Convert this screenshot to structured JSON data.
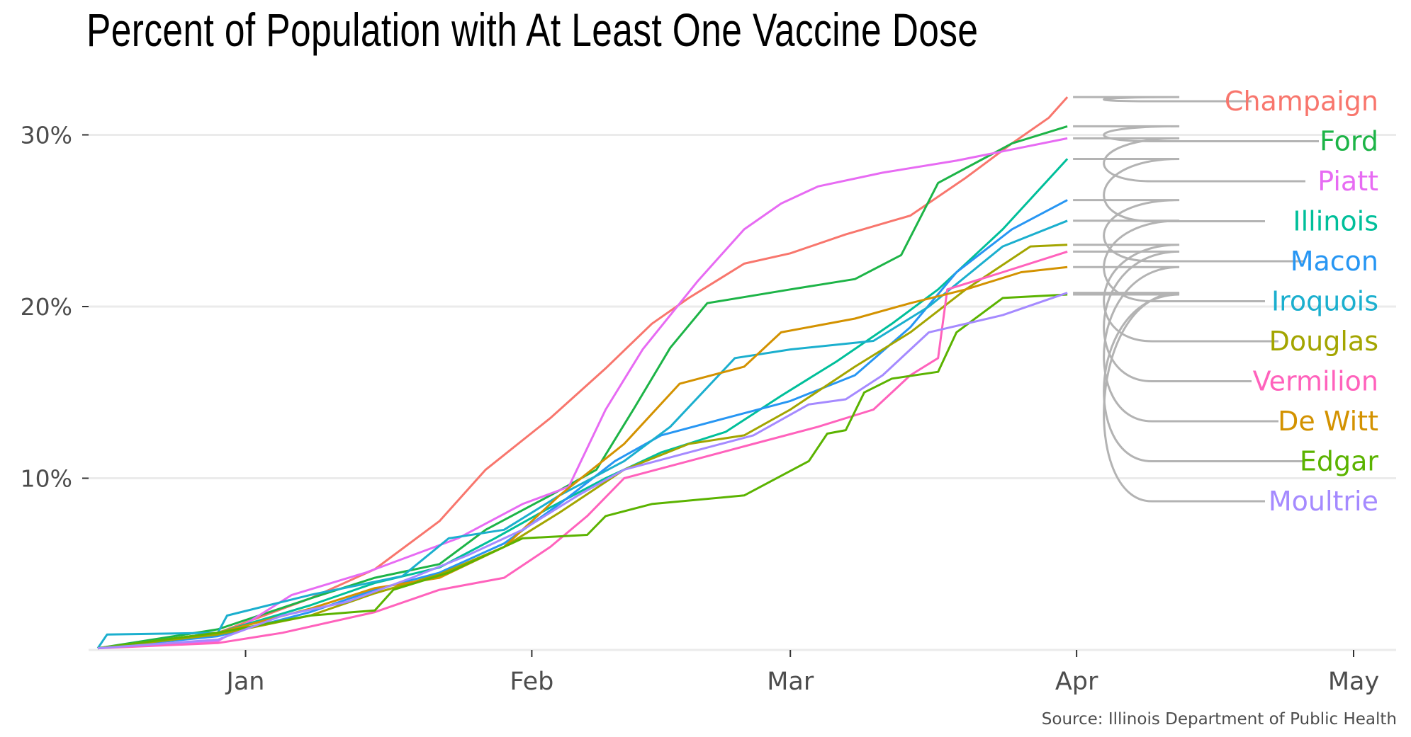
{
  "chart_data": {
    "type": "line",
    "title": "Percent of Population with At Least One Vaccine Dose",
    "caption": "Source: Illinois Department of Public Health",
    "x_ticks": [
      "Jan",
      "Feb",
      "Mar",
      "Apr",
      "May"
    ],
    "x_tick_dates": [
      "2021-01-01",
      "2021-02-01",
      "2021-03-01",
      "2021-04-01",
      "2021-05-01"
    ],
    "x_range": [
      "2020-12-15",
      "2021-05-01"
    ],
    "y_ticks": [
      "10%",
      "20%",
      "30%"
    ],
    "y_tick_values": [
      10,
      20,
      30
    ],
    "ylim": [
      0,
      32
    ],
    "grid": "horizontal",
    "legend": "direct labels at right",
    "series": [
      {
        "name": "Champaign",
        "color": "#F8766D",
        "x": [
          "2020-12-16",
          "2020-12-29",
          "2021-01-08",
          "2021-01-15",
          "2021-01-22",
          "2021-01-27",
          "2021-02-03",
          "2021-02-09",
          "2021-02-14",
          "2021-02-18",
          "2021-02-24",
          "2021-03-01",
          "2021-03-07",
          "2021-03-14",
          "2021-03-20",
          "2021-03-25",
          "2021-03-29",
          "2021-03-31"
        ],
        "values": [
          0.1,
          1.0,
          3.0,
          4.7,
          7.5,
          10.5,
          13.5,
          16.4,
          19.0,
          20.5,
          22.5,
          23.1,
          24.2,
          25.3,
          27.5,
          29.5,
          31.0,
          32.2
        ]
      },
      {
        "name": "Ford",
        "color": "#1DB447",
        "x": [
          "2020-12-16",
          "2020-12-29",
          "2021-01-08",
          "2021-01-15",
          "2021-01-22",
          "2021-01-27",
          "2021-02-03",
          "2021-02-08",
          "2021-02-12",
          "2021-02-16",
          "2021-02-20",
          "2021-03-01",
          "2021-03-08",
          "2021-03-13",
          "2021-03-17",
          "2021-03-25",
          "2021-03-31"
        ],
        "values": [
          0.1,
          1.2,
          3.0,
          4.2,
          5.0,
          7.0,
          9.0,
          10.5,
          14.0,
          17.6,
          20.2,
          21.0,
          21.6,
          23.0,
          27.2,
          29.5,
          30.5
        ]
      },
      {
        "name": "Piatt",
        "color": "#E76BF3",
        "x": [
          "2020-12-16",
          "2020-12-29",
          "2021-01-06",
          "2021-01-14",
          "2021-01-24",
          "2021-01-31",
          "2021-02-05",
          "2021-02-09",
          "2021-02-13",
          "2021-02-19",
          "2021-02-24",
          "2021-02-28",
          "2021-03-04",
          "2021-03-11",
          "2021-03-19",
          "2021-03-31"
        ],
        "values": [
          0.1,
          0.5,
          3.2,
          4.5,
          6.5,
          8.5,
          9.5,
          14.0,
          17.5,
          21.5,
          24.5,
          26.0,
          27.0,
          27.8,
          28.5,
          29.8
        ]
      },
      {
        "name": "Illinois",
        "color": "#00BF9A",
        "x": [
          "2020-12-16",
          "2020-12-29",
          "2021-01-08",
          "2021-01-15",
          "2021-01-22",
          "2021-01-28",
          "2021-02-03",
          "2021-02-09",
          "2021-02-15",
          "2021-02-22",
          "2021-02-28",
          "2021-03-06",
          "2021-03-12",
          "2021-03-17",
          "2021-03-24",
          "2021-03-31"
        ],
        "values": [
          0.1,
          1.0,
          2.6,
          3.9,
          4.8,
          6.5,
          8.3,
          10.0,
          11.5,
          12.7,
          14.8,
          16.8,
          19.0,
          21.0,
          24.5,
          28.6
        ]
      },
      {
        "name": "Macon",
        "color": "#2796F3",
        "x": [
          "2020-12-16",
          "2020-12-29",
          "2021-01-08",
          "2021-01-15",
          "2021-01-22",
          "2021-01-29",
          "2021-02-04",
          "2021-02-10",
          "2021-02-15",
          "2021-02-22",
          "2021-03-01",
          "2021-03-08",
          "2021-03-14",
          "2021-03-19",
          "2021-03-25",
          "2021-03-31"
        ],
        "values": [
          0.1,
          0.8,
          2.2,
          3.5,
          4.5,
          6.2,
          8.5,
          11.0,
          12.5,
          13.5,
          14.5,
          16.0,
          18.8,
          22.0,
          24.5,
          26.2
        ]
      },
      {
        "name": "Iroquois",
        "color": "#1BAFCE",
        "x": [
          "2020-12-16",
          "2020-12-17",
          "2020-12-29",
          "2020-12-30",
          "2021-01-08",
          "2021-01-18",
          "2021-01-23",
          "2021-01-29",
          "2021-02-04",
          "2021-02-11",
          "2021-02-16",
          "2021-02-23",
          "2021-03-01",
          "2021-03-10",
          "2021-03-16",
          "2021-03-24",
          "2021-03-31"
        ],
        "values": [
          0.1,
          0.9,
          1.0,
          2.0,
          3.2,
          4.3,
          6.5,
          7.0,
          9.0,
          11.0,
          13.0,
          17.0,
          17.5,
          18.0,
          20.0,
          23.5,
          25.0
        ]
      },
      {
        "name": "Douglas",
        "color": "#A3A500",
        "x": [
          "2020-12-16",
          "2020-12-29",
          "2021-01-08",
          "2021-01-15",
          "2021-01-22",
          "2021-01-29",
          "2021-02-04",
          "2021-02-11",
          "2021-02-18",
          "2021-02-24",
          "2021-03-01",
          "2021-03-08",
          "2021-03-14",
          "2021-03-20",
          "2021-03-27",
          "2021-03-31"
        ],
        "values": [
          0.1,
          0.9,
          2.0,
          3.3,
          4.4,
          6.0,
          8.0,
          10.5,
          12.0,
          12.5,
          14.0,
          16.5,
          18.5,
          21.0,
          23.5,
          23.6
        ]
      },
      {
        "name": "Vermilion",
        "color": "#FF62BC",
        "x": [
          "2020-12-16",
          "2020-12-29",
          "2021-01-05",
          "2021-01-15",
          "2021-01-22",
          "2021-01-29",
          "2021-02-03",
          "2021-02-07",
          "2021-02-11",
          "2021-02-18",
          "2021-02-25",
          "2021-03-04",
          "2021-03-10",
          "2021-03-14",
          "2021-03-17",
          "2021-03-18",
          "2021-03-24",
          "2021-03-31"
        ],
        "values": [
          0.1,
          0.4,
          1.0,
          2.2,
          3.5,
          4.2,
          6.0,
          7.8,
          10.0,
          11.0,
          12.0,
          13.0,
          14.0,
          16.0,
          17.0,
          21.0,
          22.0,
          23.2
        ]
      },
      {
        "name": "De Witt",
        "color": "#D39200",
        "x": [
          "2020-12-16",
          "2020-12-29",
          "2021-01-08",
          "2021-01-15",
          "2021-01-22",
          "2021-01-29",
          "2021-02-04",
          "2021-02-11",
          "2021-02-17",
          "2021-02-24",
          "2021-02-28",
          "2021-03-08",
          "2021-03-14",
          "2021-03-20",
          "2021-03-26",
          "2021-03-31"
        ],
        "values": [
          0.1,
          1.0,
          2.4,
          3.6,
          4.2,
          6.0,
          9.0,
          12.0,
          15.5,
          16.5,
          18.5,
          19.3,
          20.2,
          21.0,
          22.0,
          22.3
        ]
      },
      {
        "name": "Edgar",
        "color": "#5BB300",
        "x": [
          "2020-12-16",
          "2020-12-29",
          "2021-01-08",
          "2021-01-15",
          "2021-01-17",
          "2021-01-23",
          "2021-01-31",
          "2021-02-07",
          "2021-02-09",
          "2021-02-14",
          "2021-02-24",
          "2021-03-03",
          "2021-03-05",
          "2021-03-07",
          "2021-03-09",
          "2021-03-12",
          "2021-03-17",
          "2021-03-19",
          "2021-03-24",
          "2021-03-31"
        ],
        "values": [
          0.1,
          1.0,
          2.0,
          2.3,
          3.5,
          4.5,
          6.5,
          6.7,
          7.8,
          8.5,
          9.0,
          11.0,
          12.6,
          12.8,
          15.0,
          15.8,
          16.2,
          18.5,
          20.5,
          20.7
        ]
      },
      {
        "name": "Moultrie",
        "color": "#A58AFF",
        "x": [
          "2020-12-16",
          "2020-12-29",
          "2021-01-05",
          "2021-01-12",
          "2021-01-19",
          "2021-01-25",
          "2021-01-31",
          "2021-02-06",
          "2021-02-11",
          "2021-02-18",
          "2021-02-25",
          "2021-03-03",
          "2021-03-07",
          "2021-03-11",
          "2021-03-16",
          "2021-03-24",
          "2021-03-31"
        ],
        "values": [
          0.1,
          0.6,
          2.0,
          2.8,
          4.2,
          5.5,
          7.0,
          9.0,
          10.5,
          11.5,
          12.5,
          14.3,
          14.6,
          16.0,
          18.5,
          19.5,
          20.8
        ]
      }
    ]
  }
}
